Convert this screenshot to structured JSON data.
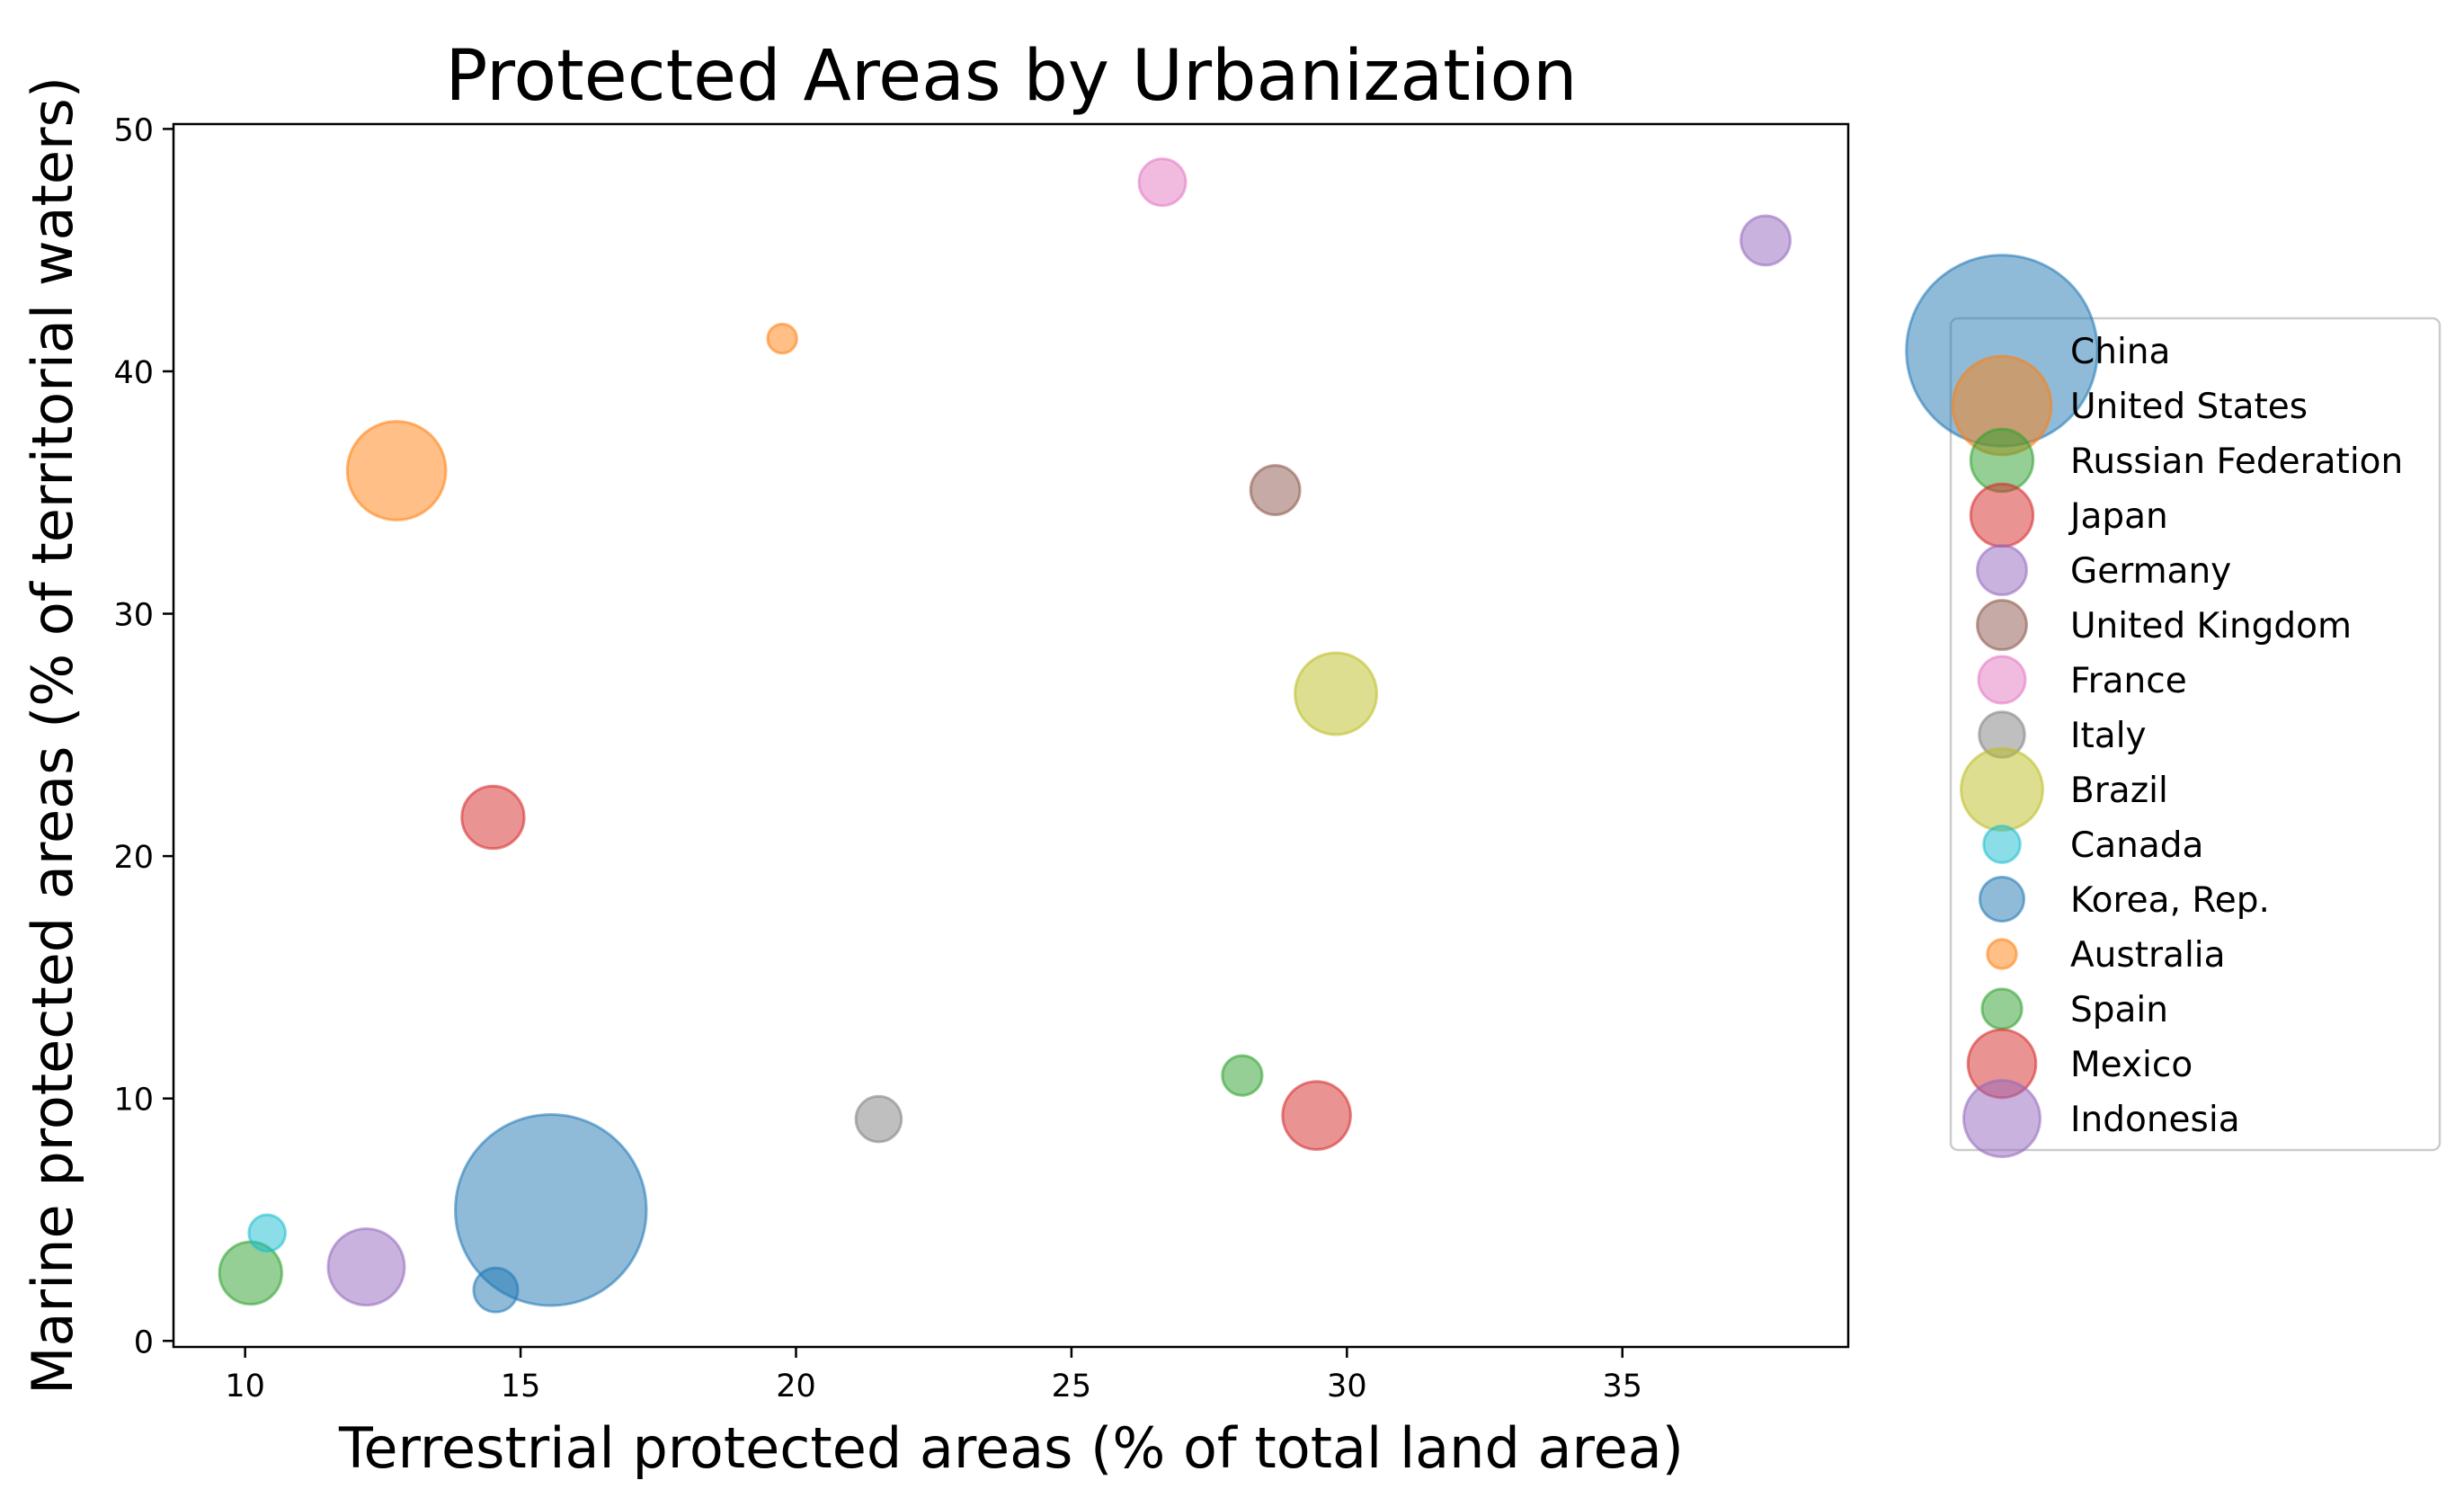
{
  "chart_data": {
    "type": "scatter",
    "title": "Protected Areas by Urbanization",
    "xlabel": "Terrestrial protected areas (% of total land area)",
    "ylabel": "Marine protected areas (% of territorial waters)",
    "xlim": [
      8.7,
      39.1
    ],
    "ylim": [
      -0.25,
      50.2
    ],
    "xticks": [
      10,
      15,
      20,
      25,
      30,
      35
    ],
    "yticks": [
      0,
      10,
      20,
      30,
      40,
      50
    ],
    "grid": false,
    "legend_position": "right",
    "series": [
      {
        "name": "China",
        "x": 15.55,
        "y": 5.4,
        "size": 3000,
        "color": "#1f77b4"
      },
      {
        "name": "United States",
        "x": 12.75,
        "y": 35.9,
        "size": 800,
        "color": "#ff7f0e"
      },
      {
        "name": "Russian Federation",
        "x": 10.1,
        "y": 2.8,
        "size": 320,
        "color": "#2ca02c"
      },
      {
        "name": "Japan",
        "x": 14.5,
        "y": 21.6,
        "size": 320,
        "color": "#d62728"
      },
      {
        "name": "Germany",
        "x": 37.6,
        "y": 45.4,
        "size": 200,
        "color": "#9467bd"
      },
      {
        "name": "United Kingdom",
        "x": 28.7,
        "y": 35.1,
        "size": 200,
        "color": "#8c564b"
      },
      {
        "name": "France",
        "x": 26.65,
        "y": 47.8,
        "size": 180,
        "color": "#e377c2"
      },
      {
        "name": "Italy",
        "x": 21.5,
        "y": 9.15,
        "size": 170,
        "color": "#7f7f7f"
      },
      {
        "name": "Brazil",
        "x": 29.8,
        "y": 26.7,
        "size": 550,
        "color": "#bcbd22"
      },
      {
        "name": "Canada",
        "x": 10.4,
        "y": 4.45,
        "size": 110,
        "color": "#17becf"
      },
      {
        "name": "Korea, Rep.",
        "x": 14.55,
        "y": 2.1,
        "size": 160,
        "color": "#1f77b4"
      },
      {
        "name": "Australia",
        "x": 19.75,
        "y": 41.35,
        "size": 70,
        "color": "#ff7f0e"
      },
      {
        "name": "Spain",
        "x": 28.1,
        "y": 10.95,
        "size": 130,
        "color": "#2ca02c"
      },
      {
        "name": "Mexico",
        "x": 29.45,
        "y": 9.3,
        "size": 380,
        "color": "#d62728"
      },
      {
        "name": "Indonesia",
        "x": 12.2,
        "y": 3.05,
        "size": 480,
        "color": "#9467bd"
      }
    ]
  }
}
